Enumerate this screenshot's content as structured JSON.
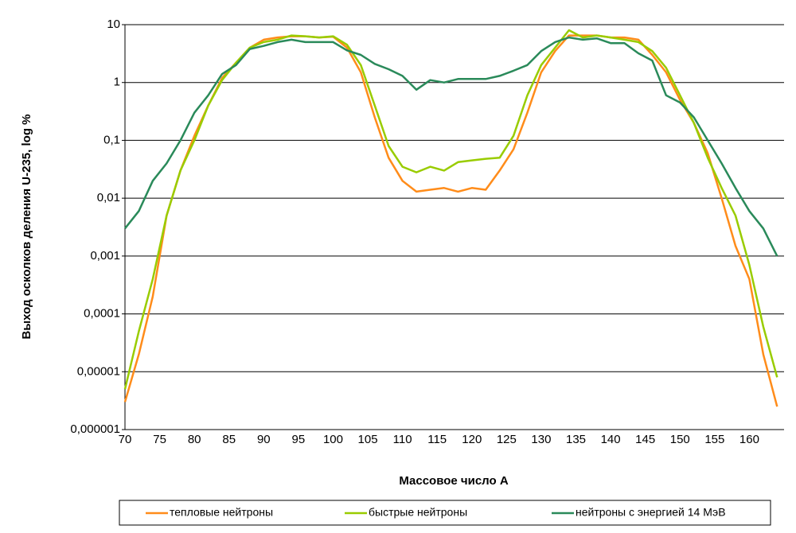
{
  "chart_data": {
    "type": "line",
    "x_label": "Массовое число А",
    "y_label": "Выход осколков деления U-235, log %",
    "x": [
      70,
      72,
      74,
      76,
      78,
      80,
      82,
      84,
      86,
      88,
      90,
      92,
      94,
      96,
      98,
      100,
      102,
      104,
      106,
      108,
      110,
      112,
      114,
      116,
      118,
      120,
      122,
      124,
      126,
      128,
      130,
      132,
      134,
      136,
      138,
      140,
      142,
      144,
      146,
      148,
      150,
      152,
      154,
      156,
      158,
      160,
      162,
      164
    ],
    "series": [
      {
        "name": "тепловые нейтроны",
        "color": "#ff8c1a",
        "values": [
          3e-06,
          2e-05,
          0.0002,
          0.005,
          0.03,
          0.12,
          0.4,
          1.2,
          2.2,
          4,
          5.5,
          6,
          6.3,
          6.3,
          6,
          6.2,
          4,
          1.5,
          0.25,
          0.05,
          0.02,
          0.013,
          0.014,
          0.015,
          0.013,
          0.015,
          0.014,
          0.03,
          0.07,
          0.3,
          1.5,
          3.5,
          6.5,
          6.5,
          6.5,
          6,
          6,
          5.5,
          3,
          1.5,
          0.5,
          0.2,
          0.06,
          0.01,
          0.0015,
          0.0004,
          2e-05,
          2.5e-06
        ]
      },
      {
        "name": "быстрые нейтроны",
        "color": "#99cc00",
        "values": [
          5e-06,
          5e-05,
          0.0004,
          0.005,
          0.03,
          0.1,
          0.4,
          1.1,
          2.2,
          4,
          5,
          5.5,
          6.5,
          6.3,
          6,
          6.3,
          4.5,
          2,
          0.4,
          0.08,
          0.035,
          0.028,
          0.035,
          0.03,
          0.042,
          0.045,
          0.048,
          0.05,
          0.12,
          0.6,
          2,
          4,
          8,
          6,
          6.5,
          6,
          5.5,
          5,
          3.5,
          1.8,
          0.6,
          0.2,
          0.05,
          0.015,
          0.005,
          0.0007,
          6e-05,
          8e-06
        ]
      },
      {
        "name": "нейтроны с энергией 14 МэВ",
        "color": "#2a8a5a",
        "values": [
          0.003,
          0.006,
          0.02,
          0.04,
          0.1,
          0.3,
          0.6,
          1.4,
          2,
          3.8,
          4.3,
          5,
          5.5,
          5,
          5,
          5,
          3.6,
          3,
          2.1,
          1.7,
          1.3,
          0.75,
          1.1,
          1,
          1.15,
          1.15,
          1.15,
          1.3,
          1.6,
          2,
          3.5,
          5,
          6,
          5.5,
          5.8,
          4.8,
          4.8,
          3.2,
          2.4,
          0.6,
          0.45,
          0.25,
          0.1,
          0.04,
          0.015,
          0.006,
          0.003,
          0.001
        ]
      }
    ],
    "xlim": [
      70,
      165
    ],
    "xticks": [
      70,
      75,
      80,
      85,
      90,
      95,
      100,
      105,
      110,
      115,
      120,
      125,
      130,
      135,
      140,
      145,
      150,
      155,
      160
    ],
    "ylim": [
      1e-06,
      10
    ],
    "yticks": [
      {
        "value": 1e-06,
        "label": "0,000001"
      },
      {
        "value": 1e-05,
        "label": "0,00001"
      },
      {
        "value": 0.0001,
        "label": "0,0001"
      },
      {
        "value": 0.001,
        "label": "0,001"
      },
      {
        "value": 0.01,
        "label": "0,01"
      },
      {
        "value": 0.1,
        "label": "0,1"
      },
      1,
      10
    ],
    "log_y": true,
    "grid": true,
    "legend": "bottom"
  }
}
